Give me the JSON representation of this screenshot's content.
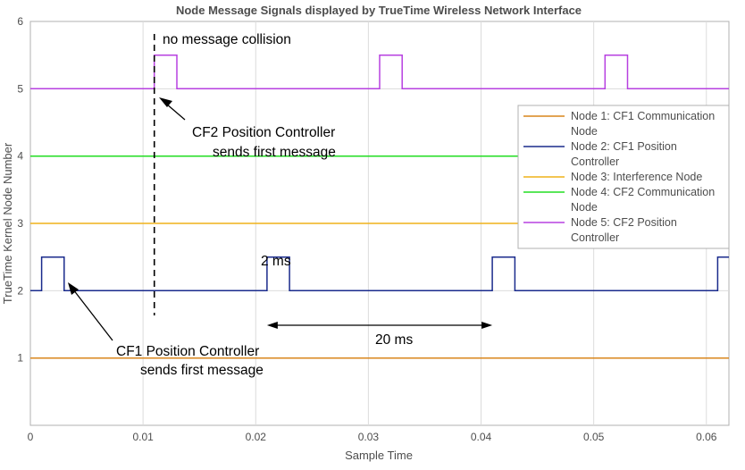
{
  "chart_data": {
    "type": "line",
    "title": "Node Message Signals displayed by TrueTime Wireless Network Interface",
    "xlabel": "Sample Time",
    "ylabel": "TrueTime Kernel Node Number",
    "xlim": [
      0,
      0.062
    ],
    "ylim": [
      0,
      6
    ],
    "xticks": [
      0,
      0.01,
      0.02,
      0.03,
      0.04,
      0.05,
      0.06
    ],
    "xtick_labels": [
      "0",
      "0.01",
      "0.02",
      "0.03",
      "0.04",
      "0.05",
      "0.06"
    ],
    "yticks": [
      1,
      2,
      3,
      4,
      5,
      6
    ],
    "ytick_labels": [
      "1",
      "2",
      "3",
      "4",
      "5",
      "6"
    ],
    "grid": true,
    "legend_position": "top-right",
    "series": [
      {
        "name": "Node 1: CF1 Communication Node",
        "color": "#d9861c",
        "x": [
          0,
          0.062
        ],
        "y": [
          1,
          1
        ]
      },
      {
        "name": "Node 2: CF1 Position Controller",
        "color": "#1a2b8c",
        "x": [
          0,
          0.001,
          0.001,
          0.003,
          0.003,
          0.021,
          0.021,
          0.023,
          0.023,
          0.041,
          0.041,
          0.043,
          0.043,
          0.061,
          0.061,
          0.062
        ],
        "y": [
          2,
          2,
          2.5,
          2.5,
          2,
          2,
          2.5,
          2.5,
          2,
          2,
          2.5,
          2.5,
          2,
          2,
          2.5,
          2.5
        ]
      },
      {
        "name": "Node 3: Interference Node",
        "color": "#efb21a",
        "x": [
          0,
          0.062
        ],
        "y": [
          3,
          3
        ]
      },
      {
        "name": "Node 4: CF2 Communication Node",
        "color": "#22dd22",
        "x": [
          0,
          0.062
        ],
        "y": [
          4,
          4
        ]
      },
      {
        "name": "Node 5: CF2 Position Controller",
        "color": "#b740e0",
        "x": [
          0,
          0.011,
          0.011,
          0.013,
          0.013,
          0.031,
          0.031,
          0.033,
          0.033,
          0.051,
          0.051,
          0.053,
          0.053,
          0.062
        ],
        "y": [
          5,
          5,
          5.5,
          5.5,
          5,
          5,
          5.5,
          5.5,
          5,
          5,
          5.5,
          5.5,
          5,
          5
        ]
      }
    ],
    "annotations": {
      "collision_line_x": 0.011,
      "no_collision": "no message collision",
      "cf2_first_line1": "CF2 Position Controller",
      "cf2_first_line2": "sends first message",
      "cf1_first_line1": "CF1 Position Controller",
      "cf1_first_line2": "sends first message",
      "pulse_width": "2 ms",
      "period": "20 ms",
      "period_from_x": 0.021,
      "period_to_x": 0.041
    }
  }
}
